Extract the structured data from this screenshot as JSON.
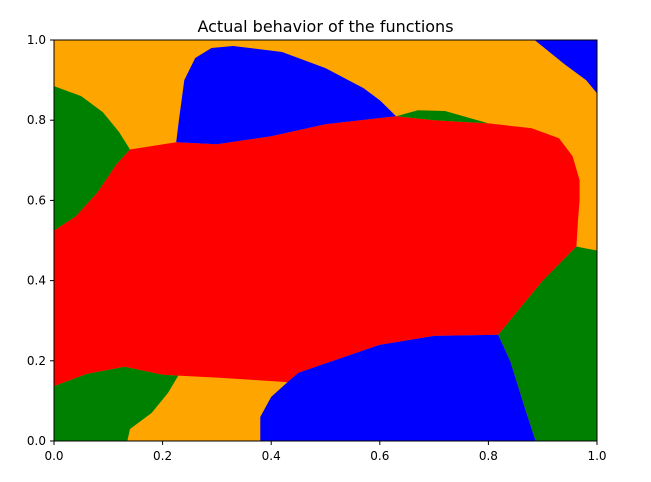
{
  "chart_data": {
    "type": "heatmap",
    "title": "Actual behavior of the functions",
    "xlabel": "",
    "ylabel": "",
    "xlim": [
      0.0,
      1.0
    ],
    "ylim": [
      0.0,
      1.0
    ],
    "x_ticks": [
      "0.0",
      "0.2",
      "0.4",
      "0.6",
      "0.8",
      "1.0"
    ],
    "y_ticks": [
      "0.0",
      "0.2",
      "0.4",
      "0.6",
      "0.8",
      "1.0"
    ],
    "grid": false,
    "background_color": "#ffa500",
    "regions": [
      {
        "color": "#ff0000",
        "points": [
          [
            0,
            0.525
          ],
          [
            0.04,
            0.56
          ],
          [
            0.08,
            0.62
          ],
          [
            0.115,
            0.69
          ],
          [
            0.14,
            0.727
          ],
          [
            0.225,
            0.745
          ],
          [
            0.3,
            0.74
          ],
          [
            0.4,
            0.76
          ],
          [
            0.5,
            0.79
          ],
          [
            0.63,
            0.81
          ],
          [
            0.7,
            0.8
          ],
          [
            0.8,
            0.792
          ],
          [
            0.88,
            0.78
          ],
          [
            0.93,
            0.755
          ],
          [
            0.955,
            0.71
          ],
          [
            0.968,
            0.65
          ],
          [
            0.968,
            0.6
          ],
          [
            0.965,
            0.55
          ],
          [
            0.962,
            0.485
          ],
          [
            0.9,
            0.4
          ],
          [
            0.818,
            0.265
          ],
          [
            0.7,
            0.262
          ],
          [
            0.6,
            0.24
          ],
          [
            0.45,
            0.17
          ],
          [
            0.43,
            0.147
          ],
          [
            0.3,
            0.158
          ],
          [
            0.229,
            0.163
          ],
          [
            0.2,
            0.165
          ],
          [
            0.13,
            0.185
          ],
          [
            0.06,
            0.167
          ],
          [
            0,
            0.137
          ]
        ]
      },
      {
        "color": "#008000",
        "points": [
          [
            0,
            0.525
          ],
          [
            0.04,
            0.56
          ],
          [
            0.08,
            0.62
          ],
          [
            0.115,
            0.69
          ],
          [
            0.14,
            0.727
          ],
          [
            0.12,
            0.77
          ],
          [
            0.09,
            0.82
          ],
          [
            0.05,
            0.86
          ],
          [
            0,
            0.885
          ]
        ]
      },
      {
        "color": "#0000ff",
        "points": [
          [
            0.225,
            0.745
          ],
          [
            0.23,
            0.8
          ],
          [
            0.24,
            0.9
          ],
          [
            0.26,
            0.955
          ],
          [
            0.29,
            0.98
          ],
          [
            0.33,
            0.985
          ],
          [
            0.42,
            0.97
          ],
          [
            0.5,
            0.93
          ],
          [
            0.57,
            0.88
          ],
          [
            0.6,
            0.85
          ],
          [
            0.63,
            0.81
          ],
          [
            0.5,
            0.79
          ],
          [
            0.4,
            0.76
          ],
          [
            0.3,
            0.74
          ]
        ]
      },
      {
        "color": "#008000",
        "points": [
          [
            0.63,
            0.81
          ],
          [
            0.67,
            0.825
          ],
          [
            0.72,
            0.823
          ],
          [
            0.78,
            0.8
          ],
          [
            0.8,
            0.792
          ],
          [
            0.7,
            0.8
          ]
        ]
      },
      {
        "color": "#0000ff",
        "points": [
          [
            0.885,
            1.0
          ],
          [
            0.94,
            0.94
          ],
          [
            0.98,
            0.9
          ],
          [
            1.0,
            0.867
          ],
          [
            1.0,
            1.0
          ]
        ]
      },
      {
        "color": "#008000",
        "points": [
          [
            0.962,
            0.485
          ],
          [
            0.98,
            0.48
          ],
          [
            1.0,
            0.475
          ],
          [
            1.0,
            0.0
          ],
          [
            0.887,
            0.0
          ],
          [
            0.87,
            0.07
          ],
          [
            0.84,
            0.2
          ],
          [
            0.818,
            0.265
          ],
          [
            0.9,
            0.4
          ]
        ]
      },
      {
        "color": "#0000ff",
        "points": [
          [
            0.43,
            0.147
          ],
          [
            0.45,
            0.17
          ],
          [
            0.6,
            0.24
          ],
          [
            0.7,
            0.262
          ],
          [
            0.818,
            0.265
          ],
          [
            0.84,
            0.2
          ],
          [
            0.87,
            0.07
          ],
          [
            0.887,
            0.0
          ],
          [
            0.38,
            0.0
          ],
          [
            0.38,
            0.06
          ],
          [
            0.4,
            0.11
          ]
        ]
      },
      {
        "color": "#008000",
        "points": [
          [
            0,
            0.137
          ],
          [
            0.06,
            0.167
          ],
          [
            0.13,
            0.185
          ],
          [
            0.2,
            0.165
          ],
          [
            0.229,
            0.163
          ],
          [
            0.21,
            0.12
          ],
          [
            0.18,
            0.07
          ],
          [
            0.14,
            0.03
          ],
          [
            0.135,
            0.0
          ],
          [
            0,
            0.0
          ]
        ]
      }
    ]
  }
}
